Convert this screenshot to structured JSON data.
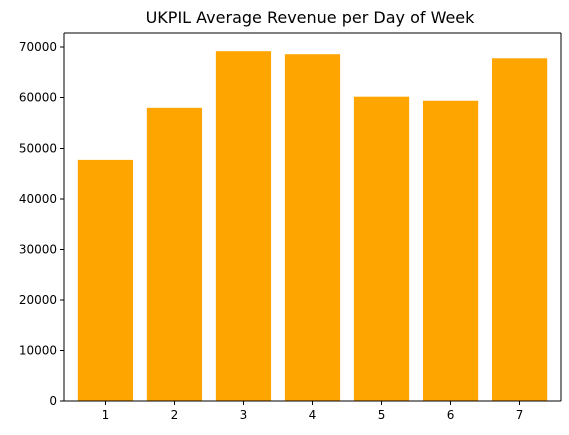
{
  "chart_data": {
    "type": "bar",
    "title": "UKPIL Average Revenue per Day of Week",
    "xlabel": "",
    "ylabel": "",
    "categories": [
      "1",
      "2",
      "3",
      "4",
      "5",
      "6",
      "7"
    ],
    "values": [
      47700,
      58000,
      69200,
      68600,
      60200,
      59400,
      67800
    ],
    "ylim": [
      0,
      72800
    ],
    "yticks": [
      0,
      10000,
      20000,
      30000,
      40000,
      50000,
      60000,
      70000
    ],
    "bar_color": "#FFA500",
    "grid": false,
    "legend": "none"
  }
}
